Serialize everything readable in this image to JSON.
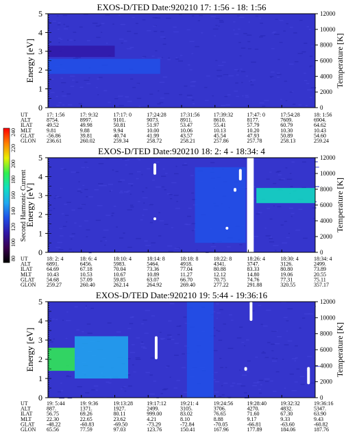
{
  "chart_data": [
    {
      "type": "heatmap",
      "title": "EXOS-D/TED    Date:920210  17: 1:56 - 18: 1:56",
      "ylabel": "Energy [eV]",
      "y2label": "Temperature [K]",
      "ylim": [
        0,
        5
      ],
      "y_ticks": [
        "0",
        "1",
        "2",
        "3",
        "4",
        "5"
      ],
      "y2lim": [
        0,
        12000
      ],
      "y2_ticks": [
        "0",
        "2000",
        "4000",
        "6000",
        "8000",
        "10000",
        "12000"
      ],
      "row_labels": [
        "UT",
        "ALT",
        "ILAT",
        "MLT",
        "GLAT",
        "GLON"
      ],
      "columns": [
        [
          "17: 1:56",
          "8754.",
          "49.52",
          "9.81",
          "-56.86",
          "236.61"
        ],
        [
          "17: 9:32",
          "8997.",
          "49.98",
          "9.88",
          "39.81",
          "260.02"
        ],
        [
          "17:17: 0",
          "9101.",
          "50.81",
          "9.94",
          "40.74",
          "259.34"
        ],
        [
          "17:24:28",
          "9073.",
          "51.97",
          "10.00",
          "41.99",
          "258.72"
        ],
        [
          "17:31:56",
          "8911.",
          "53.47",
          "10.06",
          "43.57",
          "258.21"
        ],
        [
          "17:39:32",
          "8610.",
          "55.41",
          "10.13",
          "45.54",
          "257.86"
        ],
        [
          "17:47: 0",
          "8177.",
          "57.79",
          "10.20",
          "47.93",
          "257.78"
        ],
        [
          "17:54:28",
          "7609.",
          "60.79",
          "10.30",
          "50.89",
          "258.13"
        ],
        [
          "18: 1:56",
          "6904.",
          "64.62",
          "10.43",
          "54.60",
          "259.24"
        ]
      ],
      "features": [
        {
          "x_frac": [
            0.0,
            0.42
          ],
          "energy": [
            1.8,
            2.6
          ],
          "level": 0.32
        },
        {
          "x_frac": [
            0.0,
            0.25
          ],
          "energy": [
            2.7,
            3.3
          ],
          "level": 0.26
        }
      ]
    },
    {
      "type": "heatmap",
      "title": "EXOS-D/TED    Date:920210  18: 2: 4 - 18:34: 4",
      "ylabel": "Energy [eV]",
      "y2label": "Temperature [K]",
      "ylim": [
        0,
        5
      ],
      "y_ticks": [
        "0",
        "1",
        "2",
        "3",
        "4",
        "5"
      ],
      "y2lim": [
        0,
        12000
      ],
      "y2_ticks": [
        "0",
        "2000",
        "4000",
        "6000",
        "8000",
        "10000",
        "12000"
      ],
      "row_labels": [
        "UT",
        "ALT",
        "ILAT",
        "MLT",
        "GLAT",
        "GLON"
      ],
      "columns": [
        [
          "18: 2: 4",
          "6891.",
          "64.69",
          "10.43",
          "54.68",
          "259.27"
        ],
        [
          "18: 6: 4",
          "6456.",
          "67.18",
          "10.53",
          "57.09",
          "260.40"
        ],
        [
          "18:10: 4",
          "5983.",
          "70.04",
          "10.67",
          "59.85",
          "262.14"
        ],
        [
          "18:14: 8",
          "5464.",
          "73.36",
          "10.89",
          "63.07",
          "264.92"
        ],
        [
          "18:18: 8",
          "4918.",
          "77.04",
          "11.27",
          "66.70",
          "269.40"
        ],
        [
          "18:22: 8",
          "4341.",
          "80.88",
          "12.12",
          "70.75",
          "277.22"
        ],
        [
          "18:26: 4",
          "3747.",
          "83.33",
          "14.80",
          "74.76",
          "291.88"
        ],
        [
          "18:30: 4",
          "3126.",
          "80.80",
          "19.06",
          "77.31",
          "320.55"
        ],
        [
          "18:34: 4",
          "2499.",
          "73.89",
          "20.55",
          "75.11",
          "357.17"
        ]
      ],
      "gap_x_frac": [
        0.745,
        0.77
      ],
      "white_blobs": [
        {
          "x_frac": 0.4,
          "energy": [
            4.1,
            4.7
          ]
        },
        {
          "x_frac": 0.4,
          "energy": [
            1.7,
            1.85
          ]
        },
        {
          "x_frac": 0.7,
          "energy": [
            3.2,
            3.4
          ]
        },
        {
          "x_frac": 0.72,
          "energy": [
            3.8,
            4.4
          ]
        },
        {
          "x_frac": 0.67,
          "energy": [
            1.2,
            1.35
          ]
        }
      ],
      "features": [
        {
          "x_frac": [
            0.78,
            1.0
          ],
          "energy": [
            2.6,
            3.4
          ],
          "level": 0.5
        },
        {
          "x_frac": [
            0.55,
            0.74
          ],
          "energy": [
            0.5,
            4.5
          ],
          "level": 0.28
        }
      ]
    },
    {
      "type": "heatmap",
      "title": "EXOS-D/TED    Date:920210  19: 5:44 - 19:36:16",
      "ylabel": "Energy [eV]",
      "y2label": "Temperature [K]",
      "ylim": [
        0,
        5
      ],
      "y_ticks": [
        "0",
        "1",
        "2",
        "3",
        "4",
        "5"
      ],
      "y2lim": [
        0,
        12000
      ],
      "y2_ticks": [
        "0",
        "2000",
        "4000",
        "6000",
        "8000",
        "10000",
        "12000"
      ],
      "row_labels": [
        "UT",
        "ALT",
        "ILAT",
        "MLT",
        "GLAT",
        "GLON"
      ],
      "columns": [
        [
          "19: 5:44",
          "887.",
          "56.75",
          "22.30",
          "-48.22",
          "65.56"
        ],
        [
          "19: 9:36",
          "1371.",
          "69.26",
          "22.65",
          "-60.83",
          "77.59"
        ],
        [
          "19:13:28",
          "1927.",
          "80.11",
          "23.62",
          "-69.50",
          "97.03"
        ],
        [
          "19:17:12",
          "2499.",
          "999.00",
          "4.21",
          "-73.29",
          "123.76"
        ],
        [
          "19:21: 4",
          "3105.",
          "83.02",
          "8.10",
          "-72.84",
          "150.41"
        ],
        [
          "19:24:56",
          "3706.",
          "76.65",
          "8.88",
          "-70.05",
          "167.96"
        ],
        [
          "19:28:40",
          "4270.",
          "71.60",
          "9.17",
          "-66.81",
          "177.89"
        ],
        [
          "19:32:32",
          "4832.",
          "67.30",
          "9.33",
          "-63.60",
          "184.06"
        ],
        [
          "19:36:16",
          "5347.",
          "63.90",
          "9.43",
          "-60.82",
          "187.76"
        ]
      ],
      "white_blobs": [
        {
          "x_frac": 0.405,
          "energy": [
            2.0,
            3.2
          ]
        },
        {
          "x_frac": 0.76,
          "energy": [
            4.0,
            5.0
          ]
        },
        {
          "x_frac": 0.74,
          "energy": [
            1.4,
            1.6
          ]
        },
        {
          "x_frac": 0.975,
          "energy": [
            0.7,
            1.6
          ]
        }
      ],
      "features": [
        {
          "x_frac": [
            0.0,
            0.1
          ],
          "energy": [
            1.4,
            2.6
          ],
          "level": 0.62
        },
        {
          "x_frac": [
            0.1,
            0.3
          ],
          "energy": [
            1.0,
            3.2
          ],
          "level": 0.45
        },
        {
          "x_frac": [
            0.52,
            0.62
          ],
          "energy": [
            0.0,
            5.0
          ],
          "level": 0.36
        }
      ]
    }
  ],
  "colorbar": {
    "label": "Second Harmonic Current",
    "tick_labels": [
      "240",
      "220",
      "200",
      "180",
      "160",
      "140",
      "120",
      "100",
      "80"
    ],
    "colors": [
      "#000000",
      "#3a0050",
      "#3018a8",
      "#2050e8",
      "#20a8f0",
      "#10e0c0",
      "#30f050",
      "#e8f000",
      "#ff8000",
      "#ff0000"
    ]
  },
  "colors": {
    "background": "#3535cc",
    "panel_line": "#000000"
  }
}
